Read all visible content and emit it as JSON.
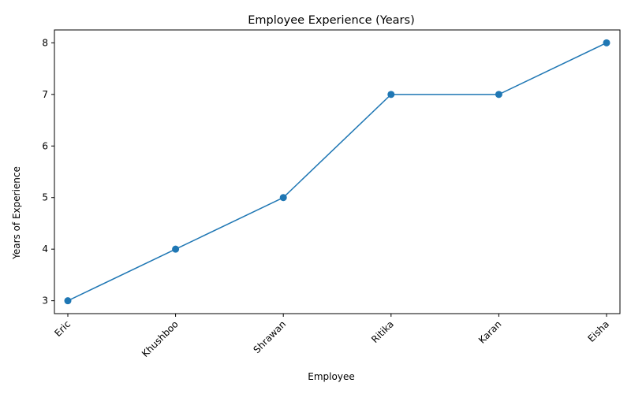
{
  "chart_data": {
    "type": "line",
    "title": "Employee Experience (Years)",
    "xlabel": "Employee",
    "ylabel": "Years of Experience",
    "categories": [
      "Eric",
      "Khushboo",
      "Shrawan",
      "Ritika",
      "Karan",
      "Eisha"
    ],
    "series": [
      {
        "values": [
          3,
          4,
          5,
          7,
          7,
          8
        ],
        "color": "#1f77b4",
        "marker": "circle"
      }
    ],
    "ylim": [
      2.75,
      8.25
    ],
    "yticks": [
      3,
      4,
      5,
      6,
      7,
      8
    ],
    "grid": false,
    "legend": "none",
    "xtick_rotation": 45
  }
}
